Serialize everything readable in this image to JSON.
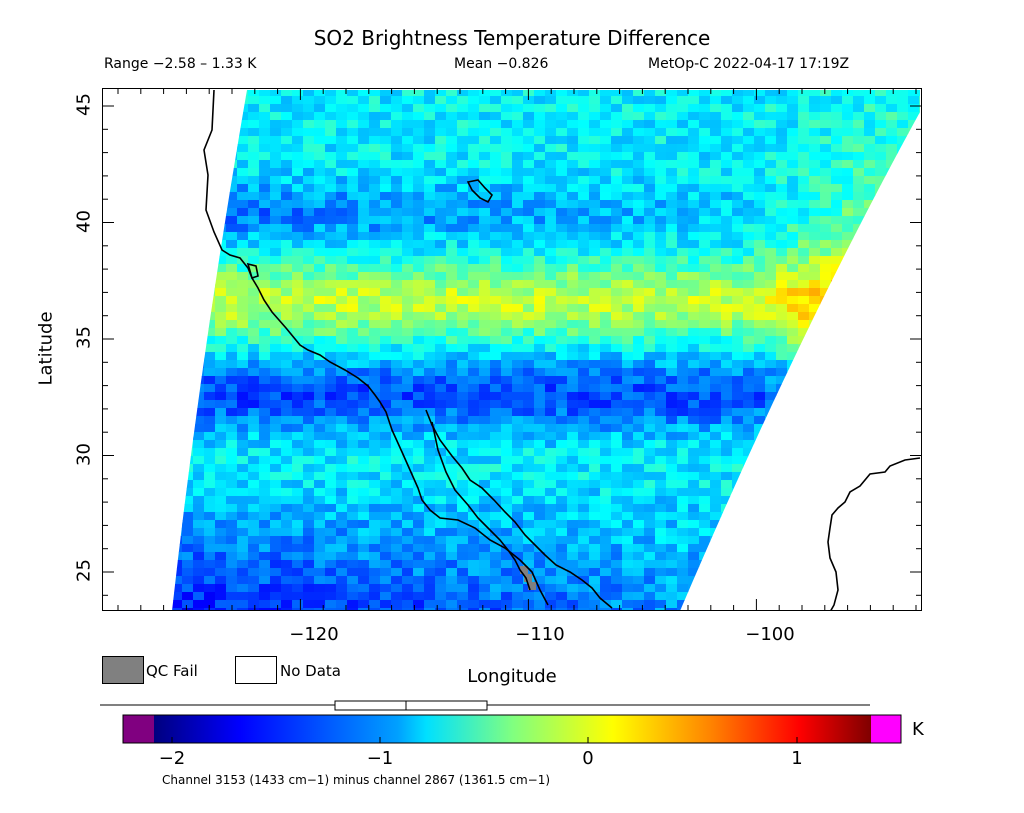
{
  "title": "SO2 Brightness Temperature Difference",
  "subtitle": {
    "range": "Range −2.58 – 1.33 K",
    "mean": "Mean −0.826",
    "satellite_time": "MetOp-C 2022-04-17 17:19Z"
  },
  "axes": {
    "xlabel": "Longitude",
    "ylabel": "Latitude",
    "xticks": [
      "−120",
      "−110",
      "−100"
    ],
    "yticks": [
      "45",
      "40",
      "35",
      "30",
      "25"
    ]
  },
  "legend": {
    "qc_fail": "QC Fail",
    "no_data": "No Data",
    "qc_fail_color": "#808080",
    "no_data_color": "#ffffff"
  },
  "colorbar": {
    "unit": "K",
    "ticks": [
      "−2",
      "−1",
      "0",
      "1"
    ],
    "under_color": "#800080",
    "over_color": "#ff00ff"
  },
  "footnote": "Channel 3153 (1433 cm−1) minus channel 2867 (1361.5 cm−1)",
  "map": {
    "lon_range": [
      -129,
      -94
    ],
    "lat_range": [
      23,
      46
    ],
    "value_range": [
      -2.58,
      1.33
    ],
    "mean": -0.826,
    "colormap": "jet"
  }
}
